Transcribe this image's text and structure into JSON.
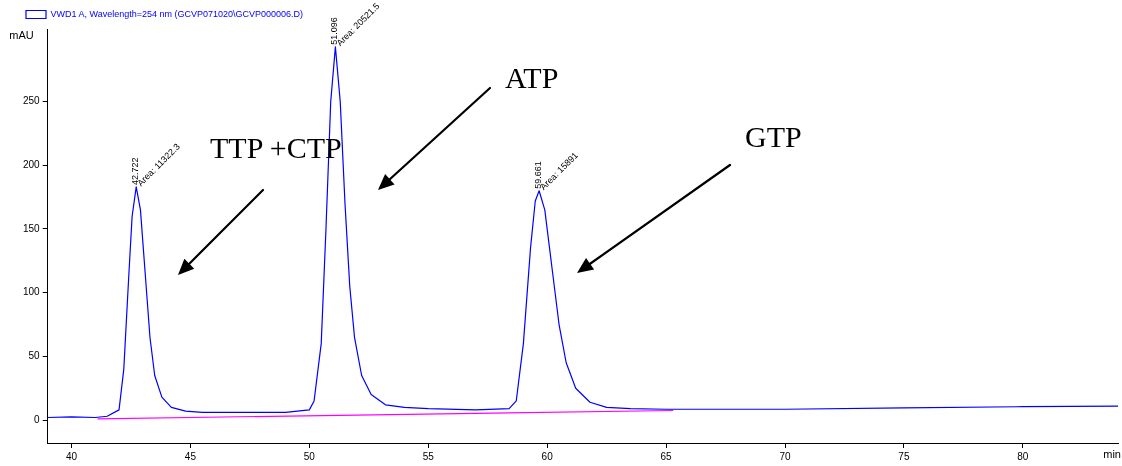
{
  "chart_data": {
    "type": "line",
    "xlabel": "min",
    "ylabel": "mAU",
    "xlim": [
      39,
      84
    ],
    "xticks": [
      40,
      45,
      50,
      55,
      60,
      65,
      70,
      75,
      80
    ],
    "ylim": [
      -18,
      307
    ],
    "yticks": [
      0,
      50,
      100,
      150,
      200,
      250
    ],
    "legend": "top left",
    "grid": false,
    "marker": "none",
    "line_style": "solid",
    "series": [
      {
        "name": "VWD1 A, Wavelength=254 nm (GCVP071020\\GCVP000006.D)",
        "color": "#0000ff",
        "x": [
          39,
          40,
          41,
          41.5,
          42,
          42.2,
          42.4,
          42.55,
          42.722,
          42.9,
          43.1,
          43.3,
          43.5,
          43.8,
          44.2,
          44.8,
          45.5,
          47,
          49,
          50,
          50.2,
          50.5,
          50.7,
          50.9,
          51.096,
          51.3,
          51.5,
          51.7,
          51.9,
          52.2,
          52.6,
          53.2,
          54,
          55,
          57,
          58.4,
          58.7,
          59,
          59.3,
          59.5,
          59.661,
          59.9,
          60.2,
          60.5,
          60.8,
          61.2,
          61.8,
          62.5,
          63.5,
          65,
          70,
          75,
          80,
          84
        ],
        "values": [
          2,
          2.5,
          2,
          3,
          8,
          40,
          110,
          160,
          183,
          165,
          115,
          65,
          35,
          18,
          10,
          7,
          6,
          6,
          6,
          8,
          15,
          60,
          150,
          250,
          293,
          250,
          170,
          105,
          65,
          35,
          20,
          12,
          10,
          9,
          8,
          9,
          15,
          60,
          135,
          172,
          180,
          165,
          120,
          75,
          45,
          25,
          14,
          10,
          9,
          8.5,
          8.5,
          9.5,
          10.5,
          11
        ]
      },
      {
        "color": "#ff00ff",
        "x": [
          41.1,
          65.3
        ],
        "values": [
          1,
          7.5
        ]
      }
    ],
    "annotations": [
      {
        "text": "42.722",
        "x": 42.722,
        "y": 183
      },
      {
        "text": "Area: 11322.3",
        "x": 42.722,
        "y": 183
      },
      {
        "text": "51.096",
        "x": 51.096,
        "y": 293
      },
      {
        "text": "Area: 20521.5",
        "x": 51.096,
        "y": 293
      },
      {
        "text": "59.661",
        "x": 59.661,
        "y": 180
      },
      {
        "text": "Area: 15891",
        "x": 59.661,
        "y": 180
      },
      "TTP +CTP",
      "ATP",
      "GTP"
    ]
  }
}
